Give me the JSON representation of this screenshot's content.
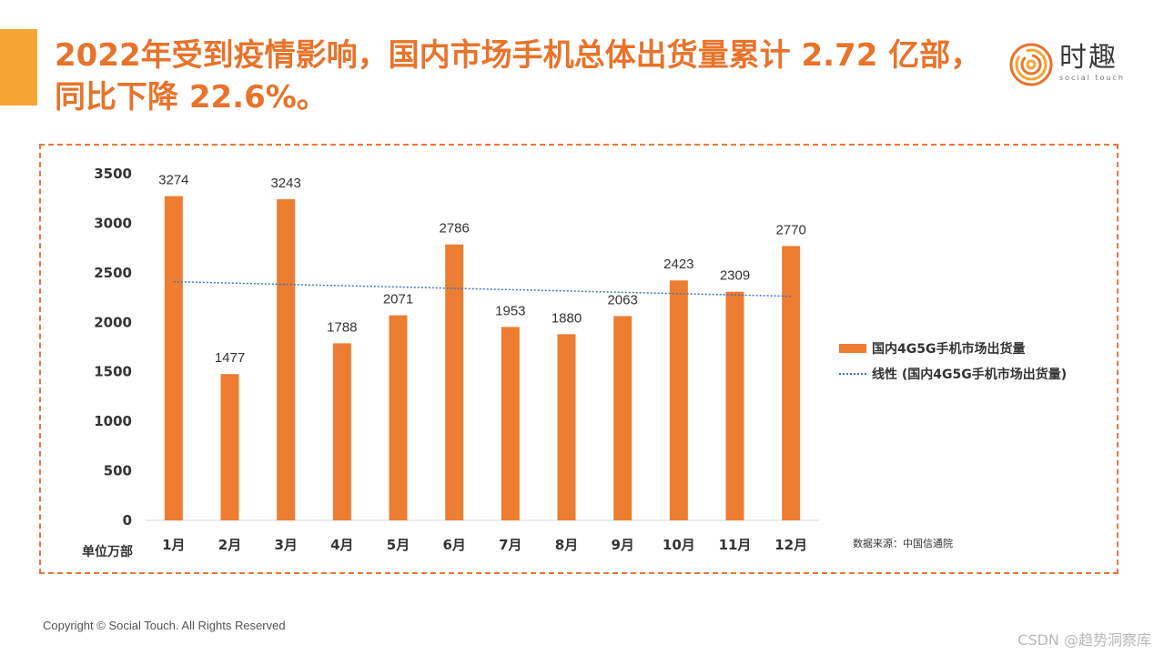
{
  "colors": {
    "accent": "#F4A533",
    "title": "#E8732A",
    "bar": "#ED7D31",
    "trend": "#4472C4",
    "frame": "#E8783A"
  },
  "title": "2022年受到疫情影响，国内市场手机总体出货量累计 2.72 亿部，同比下降 22.6%。",
  "logo": {
    "name": "时趣",
    "tagline": "social touch",
    "icon": "concentric-circles-icon"
  },
  "footer": "Copyright © Social Touch. All Rights Reserved",
  "watermark": "CSDN @趋势洞察库",
  "chart_data": {
    "type": "bar",
    "categories": [
      "1月",
      "2月",
      "3月",
      "4月",
      "5月",
      "6月",
      "7月",
      "8月",
      "9月",
      "10月",
      "11月",
      "12月"
    ],
    "series": [
      {
        "name": "国内4G5G手机市场出货量",
        "values": [
          3274,
          1477,
          3243,
          1788,
          2071,
          2786,
          1953,
          1880,
          2063,
          2423,
          2309,
          2770
        ]
      }
    ],
    "trendline": {
      "name": "线性 (国内4G5G手机市场出货量)",
      "type": "linear"
    },
    "value_labels": [
      "3274",
      "1477",
      "3243",
      "1788",
      "2071",
      "2786",
      "1953",
      "1880",
      "2063",
      "2423",
      "2309",
      "2770"
    ],
    "yticks": [
      0,
      500,
      1000,
      1500,
      2000,
      2500,
      3000,
      3500
    ],
    "ylim": [
      0,
      3500
    ],
    "unit_label": "单位万部",
    "source": "数据来源：中国信通院",
    "legend_position": "right"
  }
}
